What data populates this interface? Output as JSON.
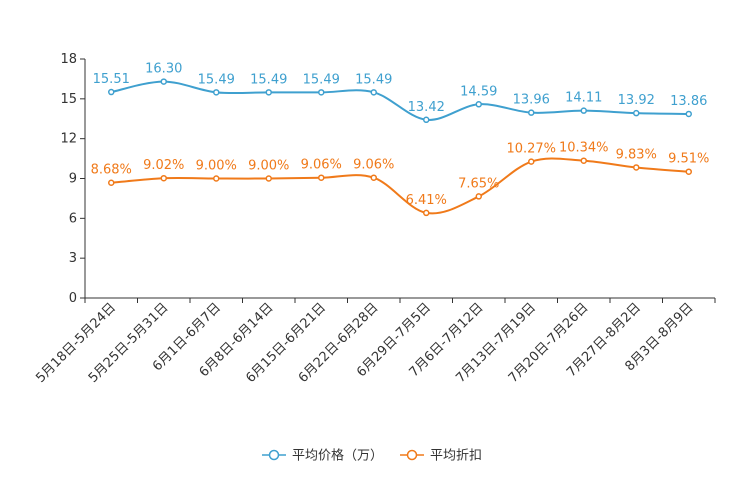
{
  "chart_data": {
    "type": "line",
    "title": "",
    "xlabel": "",
    "ylabel": "",
    "categories": [
      "5月18日-5月24日",
      "5月25日-5月31日",
      "6月1日-6月7日",
      "6月8日-6月14日",
      "6月15日-6月21日",
      "6月22日-6月28日",
      "6月29日-7月5日",
      "7月6日-7月12日",
      "7月13日-7月19日",
      "7月20日-7月26日",
      "7月27日-8月2日",
      "8月3日-8月9日"
    ],
    "yticks": [
      "0",
      "3",
      "6",
      "9",
      "12",
      "15",
      "18"
    ],
    "ylim": [
      0,
      18
    ],
    "grid": false,
    "legend_position": "bottom-center",
    "series": [
      {
        "name": "平均价格（万）",
        "color": "#3fa0cf",
        "values": [
          15.51,
          16.3,
          15.49,
          15.49,
          15.49,
          15.49,
          13.42,
          14.59,
          13.96,
          14.11,
          13.92,
          13.86
        ],
        "labels": [
          "15.51",
          "16.30",
          "15.49",
          "15.49",
          "15.49",
          "15.49",
          "13.42",
          "14.59",
          "13.96",
          "14.11",
          "13.92",
          "13.86"
        ]
      },
      {
        "name": "平均折扣",
        "color": "#f07a1a",
        "values": [
          8.68,
          9.02,
          9.0,
          9.0,
          9.06,
          9.06,
          6.41,
          7.65,
          10.27,
          10.34,
          9.83,
          9.51
        ],
        "labels": [
          "8.68%",
          "9.02%",
          "9.00%",
          "9.00%",
          "9.06%",
          "9.06%",
          "6.41%",
          "7.65%",
          "10.27%",
          "10.34%",
          "9.83%",
          "9.51%"
        ]
      }
    ]
  }
}
